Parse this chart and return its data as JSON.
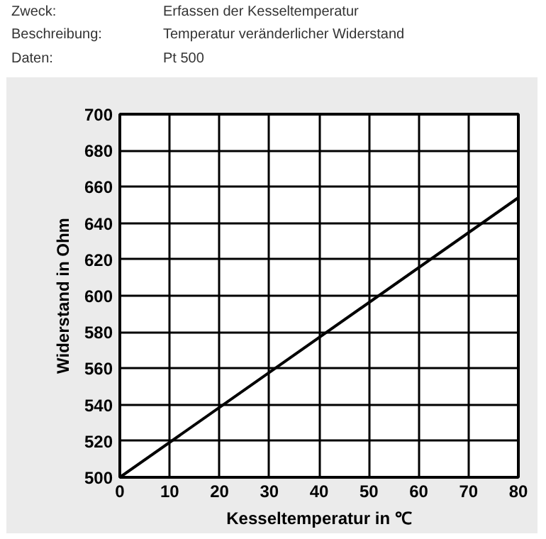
{
  "chart_data": {
    "type": "line",
    "xlabel": "Kesseltemperatur in ℃",
    "ylabel": "Widerstand in Ohm",
    "annotations": [
      "Zweck:",
      "Erfassen der Kesseltemperatur",
      "Beschreibung:",
      "Temperatur veränderlicher Widerstand",
      "Daten:",
      "Pt 500"
    ],
    "x": [
      0,
      80
    ],
    "series": [
      {
        "color": "#000000",
        "values": [
          500,
          654
        ]
      }
    ],
    "xlim": [
      0,
      80
    ],
    "ylim": [
      500,
      700
    ],
    "xticks": [
      0,
      10,
      20,
      30,
      40,
      50,
      60,
      70,
      80
    ],
    "yticks": [
      500,
      520,
      540,
      560,
      580,
      600,
      620,
      640,
      660,
      680,
      700
    ],
    "grid": true,
    "marker": "none",
    "line_style": "solid"
  }
}
